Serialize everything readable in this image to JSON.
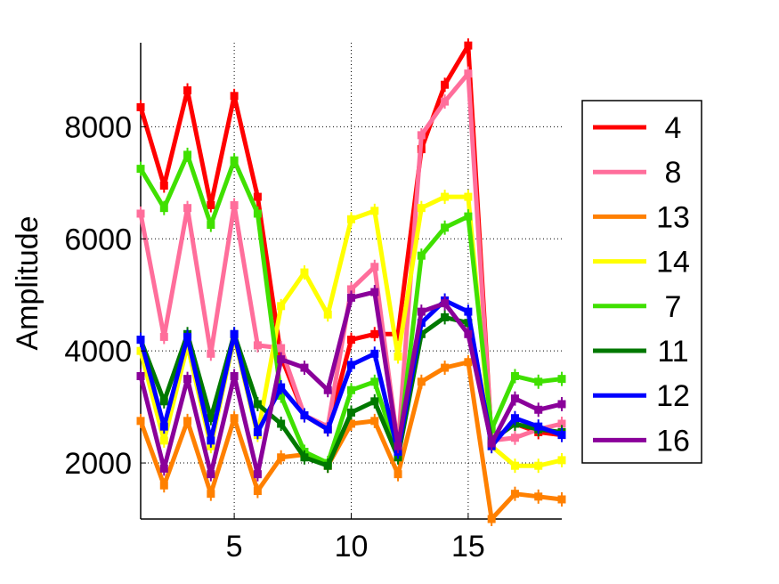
{
  "chart_data": {
    "type": "line",
    "title": "",
    "xlabel": "",
    "ylabel": "Amplitude",
    "xlim": [
      1,
      19
    ],
    "ylim": [
      1000,
      9500
    ],
    "x_ticks": [
      5,
      10,
      15
    ],
    "y_ticks": [
      2000,
      4000,
      6000,
      8000
    ],
    "grid": true,
    "legend_placement": "outside-right",
    "x": [
      1,
      2,
      3,
      4,
      5,
      6,
      7,
      8,
      9,
      10,
      11,
      12,
      13,
      14,
      15,
      16,
      17,
      18,
      19
    ],
    "series": [
      {
        "name": "4",
        "color": "#ff0000",
        "values": [
          8350,
          6950,
          8650,
          6600,
          8550,
          6750,
          3900,
          2850,
          2600,
          4200,
          4300,
          4300,
          7600,
          8750,
          9450,
          2400,
          2700,
          2550,
          2500
        ]
      },
      {
        "name": "8",
        "color": "#ff6e9b",
        "values": [
          6450,
          4250,
          6550,
          3950,
          6600,
          4100,
          4050,
          2850,
          2650,
          5100,
          5500,
          2300,
          7850,
          8450,
          8950,
          2400,
          2450,
          2600,
          2700
        ]
      },
      {
        "name": "13",
        "color": "#ff8000",
        "values": [
          2750,
          1600,
          2750,
          1450,
          2800,
          1500,
          2100,
          2150,
          1950,
          2700,
          2750,
          1800,
          3450,
          3700,
          3800,
          1000,
          1450,
          1400,
          1350
        ]
      },
      {
        "name": "14",
        "color": "#ffff00",
        "values": [
          4000,
          2400,
          4100,
          2300,
          4250,
          2500,
          4800,
          5400,
          4650,
          6350,
          6500,
          3900,
          6550,
          6750,
          6750,
          2300,
          1950,
          1950,
          2050
        ]
      },
      {
        "name": "7",
        "color": "#40e000",
        "values": [
          7250,
          6550,
          7500,
          6250,
          7400,
          6450,
          3200,
          2200,
          2000,
          3300,
          3450,
          2150,
          5700,
          6200,
          6400,
          2600,
          3550,
          3450,
          3500
        ]
      },
      {
        "name": "11",
        "color": "#007800",
        "values": [
          4200,
          3100,
          4300,
          2800,
          4300,
          3050,
          2700,
          2100,
          1950,
          2900,
          3100,
          2100,
          4300,
          4600,
          4500,
          2400,
          2700,
          2600,
          2550
        ]
      },
      {
        "name": "12",
        "color": "#0000ff",
        "values": [
          4200,
          2650,
          4250,
          2400,
          4300,
          2550,
          3350,
          2850,
          2600,
          3750,
          3950,
          2200,
          4500,
          4900,
          4700,
          2300,
          2800,
          2650,
          2500
        ]
      },
      {
        "name": "16",
        "color": "#8a009a",
        "values": [
          3550,
          1900,
          3500,
          1800,
          3550,
          1800,
          3850,
          3700,
          3300,
          4950,
          5050,
          2300,
          4700,
          4850,
          4300,
          2350,
          3150,
          2950,
          3050
        ]
      }
    ]
  }
}
